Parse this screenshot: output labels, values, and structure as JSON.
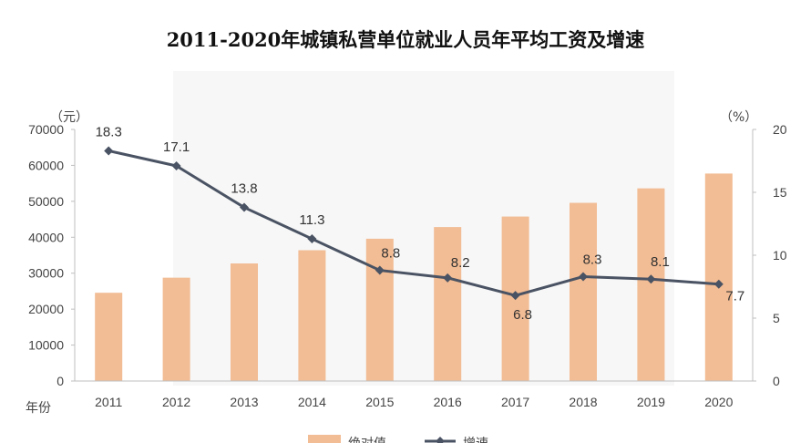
{
  "chart_data": {
    "type": "bar+line",
    "title": "2011-2020年城镇私营单位就业人员年平均工资及增速",
    "xlabel": "年份",
    "categories": [
      "2011",
      "2012",
      "2013",
      "2014",
      "2015",
      "2016",
      "2017",
      "2018",
      "2019",
      "2020"
    ],
    "series": [
      {
        "name": "绝对值",
        "type": "bar",
        "axis": "left",
        "color": "#f2bc94",
        "values": [
          24556,
          28752,
          32706,
          36390,
          39589,
          42833,
          45761,
          49575,
          53604,
          57727
        ]
      },
      {
        "name": "增速",
        "type": "line",
        "axis": "right",
        "color": "#4a5363",
        "values": [
          18.3,
          17.1,
          13.8,
          11.3,
          8.8,
          8.2,
          6.8,
          8.3,
          8.1,
          7.7
        ]
      }
    ],
    "left_axis": {
      "unit": "（元）",
      "ylim": [
        0,
        70000
      ],
      "ticks": [
        0,
        10000,
        20000,
        30000,
        40000,
        50000,
        60000,
        70000
      ]
    },
    "right_axis": {
      "unit": "（%）",
      "ylim": [
        0,
        20
      ],
      "ticks": [
        0,
        5,
        10,
        15,
        20
      ]
    },
    "legend": {
      "position": "bottom",
      "entries": [
        "绝对值",
        "增速"
      ]
    }
  }
}
